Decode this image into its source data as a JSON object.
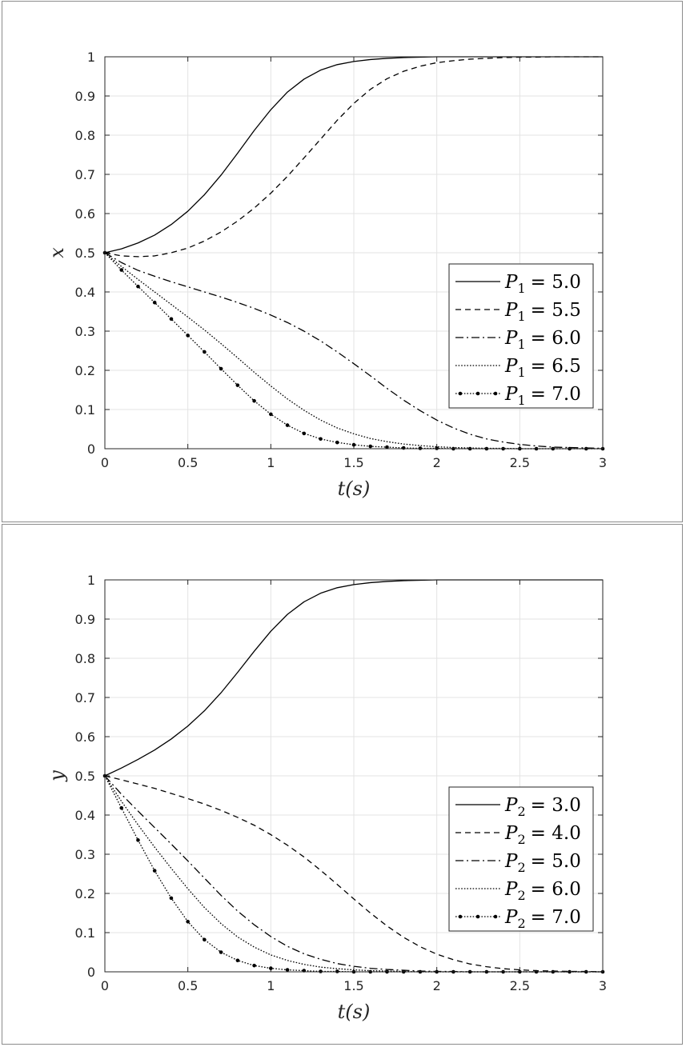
{
  "chart_data": [
    {
      "type": "line",
      "title": "",
      "xlabel": "t(s)",
      "ylabel": "x",
      "xlim": [
        0,
        3
      ],
      "ylim": [
        0,
        1
      ],
      "xticks": [
        "0",
        "0.5",
        "1",
        "1.5",
        "2",
        "2.5",
        "3"
      ],
      "yticks": [
        "0",
        "0.1",
        "0.2",
        "0.3",
        "0.4",
        "0.5",
        "0.6",
        "0.7",
        "0.8",
        "0.9",
        "1"
      ],
      "grid": true,
      "legend_position": "right",
      "x": [
        0,
        0.1,
        0.2,
        0.3,
        0.4,
        0.5,
        0.6,
        0.7,
        0.8,
        0.9,
        1.0,
        1.1,
        1.2,
        1.3,
        1.4,
        1.5,
        1.6,
        1.7,
        1.8,
        1.9,
        2.0,
        2.1,
        2.2,
        2.3,
        2.4,
        2.5,
        2.6,
        2.7,
        2.8,
        2.9,
        3.0
      ],
      "series": [
        {
          "name": "P_1 = 5.0",
          "legend_var": "P",
          "legend_sub": "1",
          "legend_val": "= 5.0",
          "dash": "solid",
          "marker": false,
          "values": [
            0.5,
            0.51,
            0.525,
            0.545,
            0.572,
            0.606,
            0.648,
            0.698,
            0.754,
            0.812,
            0.865,
            0.91,
            0.943,
            0.966,
            0.98,
            0.988,
            0.993,
            0.996,
            0.998,
            0.999,
            1.0,
            1.0,
            1.0,
            1.0,
            1.0,
            1.0,
            1.0,
            1.0,
            1.0,
            1.0,
            1.0
          ]
        },
        {
          "name": "P_1 = 5.5",
          "legend_var": "P",
          "legend_sub": "1",
          "legend_val": "= 5.5",
          "dash": "dashed",
          "marker": false,
          "values": [
            0.5,
            0.492,
            0.49,
            0.492,
            0.5,
            0.512,
            0.53,
            0.553,
            0.581,
            0.614,
            0.652,
            0.695,
            0.742,
            0.79,
            0.838,
            0.881,
            0.917,
            0.944,
            0.963,
            0.976,
            0.985,
            0.99,
            0.994,
            0.996,
            0.998,
            0.999,
            0.999,
            1.0,
            1.0,
            1.0,
            1.0
          ]
        },
        {
          "name": "P_1 = 6.0",
          "legend_var": "P",
          "legend_sub": "1",
          "legend_val": "= 6.0",
          "dash": "dashdot",
          "marker": false,
          "values": [
            0.5,
            0.475,
            0.455,
            0.44,
            0.426,
            0.413,
            0.4,
            0.387,
            0.373,
            0.358,
            0.341,
            0.322,
            0.3,
            0.275,
            0.247,
            0.217,
            0.186,
            0.154,
            0.124,
            0.097,
            0.073,
            0.053,
            0.037,
            0.025,
            0.017,
            0.011,
            0.007,
            0.004,
            0.003,
            0.002,
            0.001
          ]
        },
        {
          "name": "P_1 = 6.5",
          "legend_var": "P",
          "legend_sub": "1",
          "legend_val": "= 6.5",
          "dash": "dotted",
          "marker": false,
          "values": [
            0.5,
            0.465,
            0.432,
            0.4,
            0.368,
            0.336,
            0.303,
            0.268,
            0.232,
            0.195,
            0.16,
            0.127,
            0.098,
            0.073,
            0.053,
            0.038,
            0.026,
            0.018,
            0.012,
            0.008,
            0.005,
            0.003,
            0.002,
            0.001,
            0.001,
            0.0,
            0.0,
            0.0,
            0.0,
            0.0,
            0.0
          ]
        },
        {
          "name": "P_1 = 7.0",
          "legend_var": "P",
          "legend_sub": "1",
          "legend_val": "= 7.0",
          "dash": "dotted",
          "marker": true,
          "values": [
            0.5,
            0.456,
            0.414,
            0.373,
            0.331,
            0.289,
            0.247,
            0.204,
            0.162,
            0.122,
            0.088,
            0.06,
            0.039,
            0.025,
            0.016,
            0.01,
            0.006,
            0.004,
            0.002,
            0.001,
            0.001,
            0.0,
            0.0,
            0.0,
            0.0,
            0.0,
            0.0,
            0.0,
            0.0,
            0.0,
            0.0
          ]
        }
      ]
    },
    {
      "type": "line",
      "title": "",
      "xlabel": "t(s)",
      "ylabel": "y",
      "xlim": [
        0,
        3
      ],
      "ylim": [
        0,
        1
      ],
      "xticks": [
        "0",
        "0.5",
        "1",
        "1.5",
        "2",
        "2.5",
        "3"
      ],
      "yticks": [
        "0",
        "0.1",
        "0.2",
        "0.3",
        "0.4",
        "0.5",
        "0.6",
        "0.7",
        "0.8",
        "0.9",
        "1"
      ],
      "grid": true,
      "legend_position": "right",
      "x": [
        0,
        0.1,
        0.2,
        0.3,
        0.4,
        0.5,
        0.6,
        0.7,
        0.8,
        0.9,
        1.0,
        1.1,
        1.2,
        1.3,
        1.4,
        1.5,
        1.6,
        1.7,
        1.8,
        1.9,
        2.0,
        2.1,
        2.2,
        2.3,
        2.4,
        2.5,
        2.6,
        2.7,
        2.8,
        2.9,
        3.0
      ],
      "series": [
        {
          "name": "P_2 = 3.0",
          "legend_var": "P",
          "legend_sub": "2",
          "legend_val": "= 3.0",
          "dash": "solid",
          "marker": false,
          "values": [
            0.5,
            0.52,
            0.542,
            0.566,
            0.594,
            0.627,
            0.666,
            0.712,
            0.764,
            0.818,
            0.869,
            0.912,
            0.944,
            0.966,
            0.98,
            0.988,
            0.993,
            0.996,
            0.998,
            0.999,
            1.0,
            1.0,
            1.0,
            1.0,
            1.0,
            1.0,
            1.0,
            1.0,
            1.0,
            1.0,
            1.0
          ]
        },
        {
          "name": "P_2 = 4.0",
          "legend_var": "P",
          "legend_sub": "2",
          "legend_val": "= 4.0",
          "dash": "dashed",
          "marker": false,
          "values": [
            0.5,
            0.49,
            0.479,
            0.468,
            0.455,
            0.442,
            0.428,
            0.412,
            0.394,
            0.374,
            0.35,
            0.323,
            0.293,
            0.259,
            0.223,
            0.186,
            0.15,
            0.117,
            0.088,
            0.064,
            0.045,
            0.031,
            0.02,
            0.013,
            0.008,
            0.005,
            0.003,
            0.002,
            0.001,
            0.001,
            0.0
          ]
        },
        {
          "name": "P_2 = 5.0",
          "legend_var": "P",
          "legend_sub": "2",
          "legend_val": "= 5.0",
          "dash": "dashdot",
          "marker": false,
          "values": [
            0.5,
            0.453,
            0.41,
            0.368,
            0.326,
            0.283,
            0.239,
            0.195,
            0.155,
            0.12,
            0.09,
            0.065,
            0.046,
            0.032,
            0.021,
            0.014,
            0.009,
            0.006,
            0.004,
            0.002,
            0.001,
            0.001,
            0.0,
            0.0,
            0.0,
            0.0,
            0.0,
            0.0,
            0.0,
            0.0,
            0.0
          ]
        },
        {
          "name": "P_2 = 6.0",
          "legend_var": "P",
          "legend_sub": "2",
          "legend_val": "= 6.0",
          "dash": "dotted",
          "marker": false,
          "values": [
            0.5,
            0.435,
            0.375,
            0.318,
            0.264,
            0.212,
            0.164,
            0.123,
            0.089,
            0.063,
            0.043,
            0.029,
            0.019,
            0.012,
            0.008,
            0.005,
            0.003,
            0.002,
            0.001,
            0.0,
            0.0,
            0.0,
            0.0,
            0.0,
            0.0,
            0.0,
            0.0,
            0.0,
            0.0,
            0.0,
            0.0
          ]
        },
        {
          "name": "P_2 = 7.0",
          "legend_var": "P",
          "legend_sub": "2",
          "legend_val": "= 7.0",
          "dash": "dotted",
          "marker": true,
          "values": [
            0.5,
            0.418,
            0.336,
            0.258,
            0.188,
            0.128,
            0.082,
            0.05,
            0.029,
            0.016,
            0.009,
            0.005,
            0.003,
            0.001,
            0.001,
            0.0,
            0.0,
            0.0,
            0.0,
            0.0,
            0.0,
            0.0,
            0.0,
            0.0,
            0.0,
            0.0,
            0.0,
            0.0,
            0.0,
            0.0,
            0.0
          ]
        }
      ]
    }
  ]
}
